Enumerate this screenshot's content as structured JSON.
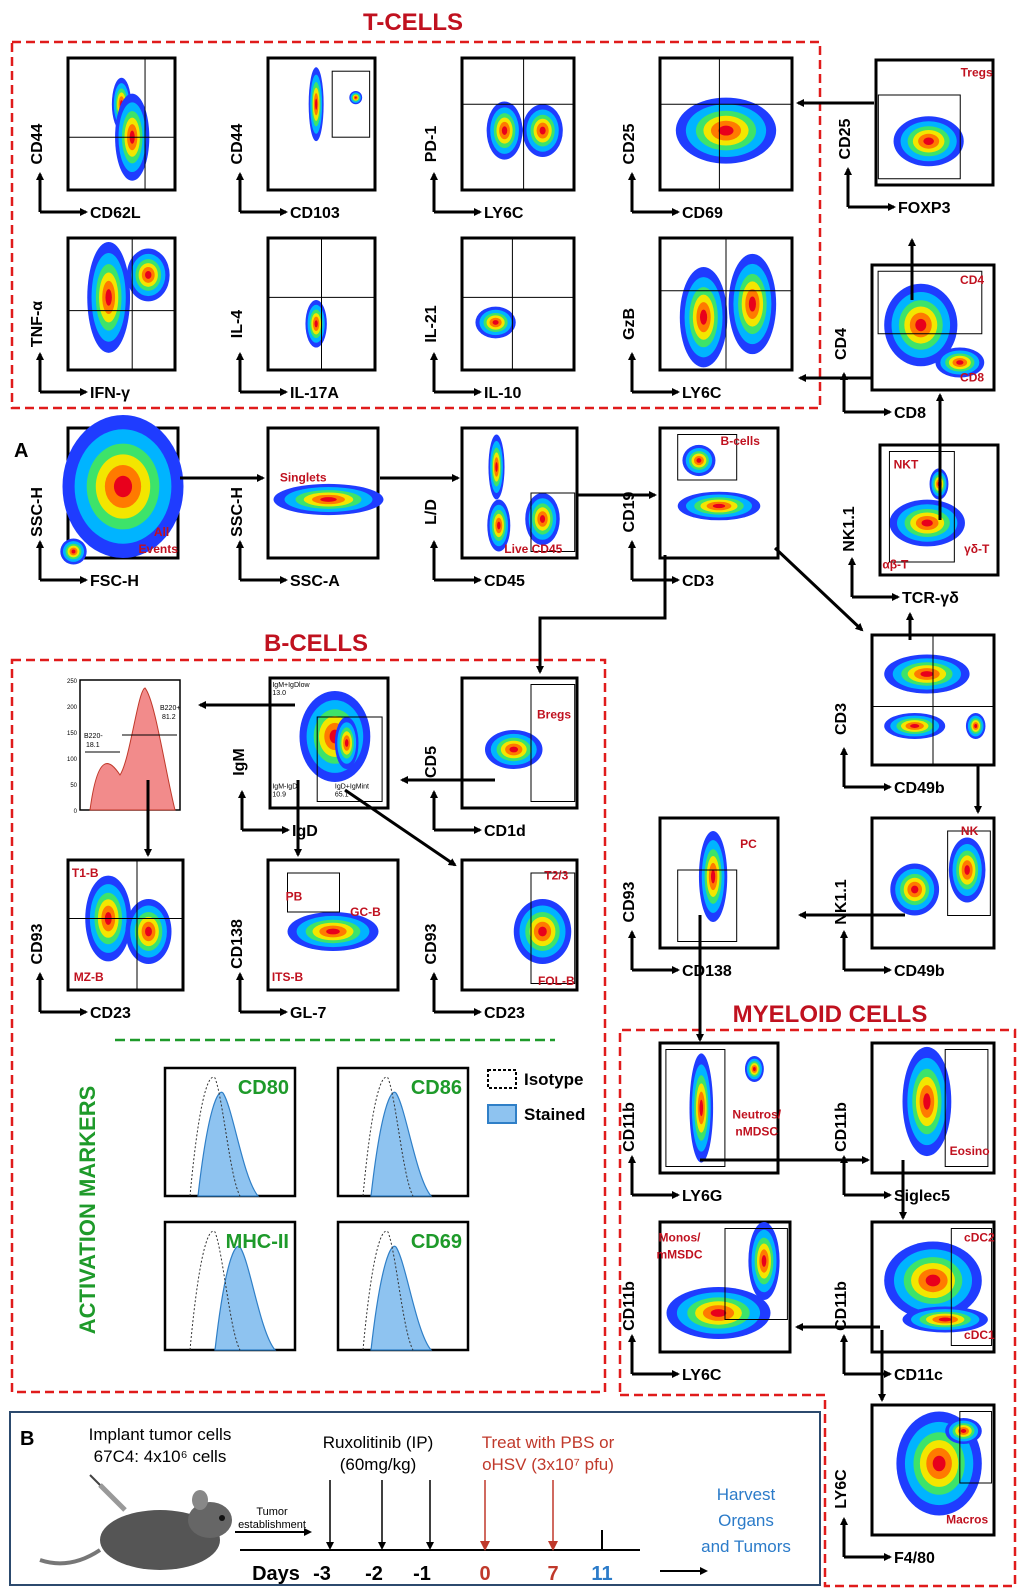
{
  "sections": {
    "t_cells": "T-CELLS",
    "b_cells": "B-CELLS",
    "myeloid": "MYELOID CELLS",
    "panel_a": "A",
    "panel_b": "B"
  },
  "plots": [
    {
      "y_axis": "CD44",
      "x_axis": "CD62L",
      "gates": []
    },
    {
      "y_axis": "CD44",
      "x_axis": "CD103",
      "gates": []
    },
    {
      "y_axis": "PD-1",
      "x_axis": "LY6C",
      "gates": []
    },
    {
      "y_axis": "CD25",
      "x_axis": "CD69",
      "gates": []
    },
    {
      "y_axis": "CD25",
      "x_axis": "FOXP3",
      "gates": [
        "Tregs"
      ]
    },
    {
      "y_axis": "TNF-α",
      "x_axis": "IFN-γ",
      "gates": []
    },
    {
      "y_axis": "IL-4",
      "x_axis": "IL-17A",
      "gates": []
    },
    {
      "y_axis": "IL-21",
      "x_axis": "IL-10",
      "gates": []
    },
    {
      "y_axis": "GzB",
      "x_axis": "LY6C",
      "gates": []
    },
    {
      "y_axis": "CD4",
      "x_axis": "CD8",
      "gates": [
        "CD4",
        "CD8"
      ]
    },
    {
      "y_axis": "SSC-H",
      "x_axis": "FSC-H",
      "gates": [
        "All",
        "Events"
      ]
    },
    {
      "y_axis": "SSC-H",
      "x_axis": "SSC-A",
      "gates": [
        "Singlets"
      ]
    },
    {
      "y_axis": "L/D",
      "x_axis": "CD45",
      "gates": [
        "Live CD45"
      ]
    },
    {
      "y_axis": "CD19",
      "x_axis": "CD3",
      "gates": [
        "B-cells"
      ]
    },
    {
      "y_axis": "NK1.1",
      "x_axis": "TCR-γδ",
      "gates": [
        "NKT",
        "αβ-T",
        "γδ-T"
      ]
    },
    {
      "y_axis": "IgM",
      "x_axis": "IgD",
      "gates": [
        "IgM+IgDlow",
        "13.0",
        "IgM-IgD-",
        "10.9",
        "IgD+IgMint",
        "65.1"
      ]
    },
    {
      "y_axis": "CD5",
      "x_axis": "CD1d",
      "gates": [
        "Bregs"
      ]
    },
    {
      "y_axis": "CD93",
      "x_axis": "CD23",
      "gates": [
        "T1-B",
        "MZ-B"
      ]
    },
    {
      "y_axis": "CD138",
      "x_axis": "GL-7",
      "gates": [
        "PB",
        "GC-B",
        "ITS-B"
      ]
    },
    {
      "y_axis": "CD93",
      "x_axis": "CD23",
      "gates": [
        "T2/3",
        "FOL-B"
      ]
    },
    {
      "y_axis": "CD3",
      "x_axis": "CD49b",
      "gates": []
    },
    {
      "y_axis": "NK1.1",
      "x_axis": "CD49b",
      "gates": [
        "NK"
      ]
    },
    {
      "y_axis": "CD93",
      "x_axis": "CD138",
      "gates": [
        "PC"
      ]
    },
    {
      "y_axis": "CD11b",
      "x_axis": "LY6G",
      "gates": [
        "Neutros/",
        "nMDSC"
      ]
    },
    {
      "y_axis": "CD11b",
      "x_axis": "Siglec5",
      "gates": [
        "Eosino"
      ]
    },
    {
      "y_axis": "CD11b",
      "x_axis": "LY6C",
      "gates": [
        "Monos/",
        "mMSDC"
      ]
    },
    {
      "y_axis": "CD11b",
      "x_axis": "CD11c",
      "gates": [
        "cDC2",
        "cDC1"
      ]
    },
    {
      "y_axis": "LY6C",
      "x_axis": "F4/80",
      "gates": [
        "Macros"
      ]
    }
  ],
  "b220_histogram": {
    "y_ticks": [
      "0",
      "50",
      "100",
      "150",
      "200",
      "250"
    ],
    "gates": [
      "B220-",
      "18.1",
      "B220+",
      "81.2"
    ]
  },
  "activation": {
    "title": "ACTIVATION MARKERS",
    "legend": [
      "Isotype",
      "Stained"
    ],
    "markers": [
      "CD80",
      "CD86",
      "MHC-II",
      "CD69"
    ]
  },
  "protocol": {
    "implant": [
      "Implant tumor cells",
      "67C4: 4x10⁶ cells"
    ],
    "establishment": [
      "Tumor",
      "establishment"
    ],
    "drug": [
      "Ruxolitinib (IP)",
      "(60mg/kg)"
    ],
    "treatment": [
      "Treat with PBS or",
      "oHSV (3x10⁷ pfu)"
    ],
    "days_label": "Days",
    "days": [
      "-3",
      "-2",
      "-1",
      "0",
      "7",
      "11"
    ],
    "harvest": [
      "Harvest",
      "Organs",
      "and Tumors"
    ]
  }
}
